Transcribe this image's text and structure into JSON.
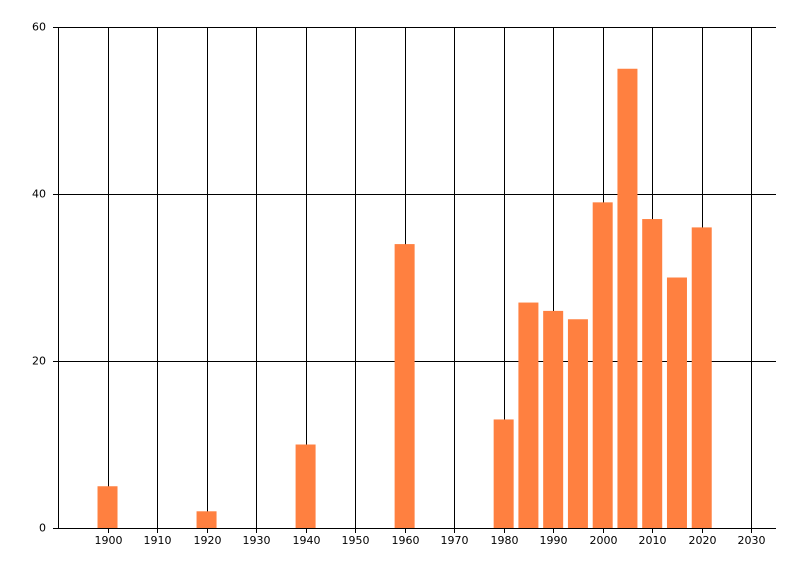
{
  "chart_data": {
    "type": "bar",
    "x": [
      1900,
      1920,
      1940,
      1960,
      1980,
      1985,
      1990,
      1995,
      2000,
      2005,
      2010,
      2015,
      2020
    ],
    "values": [
      5,
      2,
      10,
      34,
      13,
      27,
      26,
      25,
      39,
      55,
      37,
      30,
      36
    ],
    "color": "#ff8040",
    "xlim": [
      1890,
      2035
    ],
    "xticks": [
      1900,
      1910,
      1920,
      1930,
      1940,
      1950,
      1960,
      1970,
      1980,
      1990,
      2000,
      2010,
      2020,
      2030
    ],
    "ylim": [
      0,
      60
    ],
    "yticks": [
      0,
      20,
      40,
      60
    ],
    "grid": true
  }
}
